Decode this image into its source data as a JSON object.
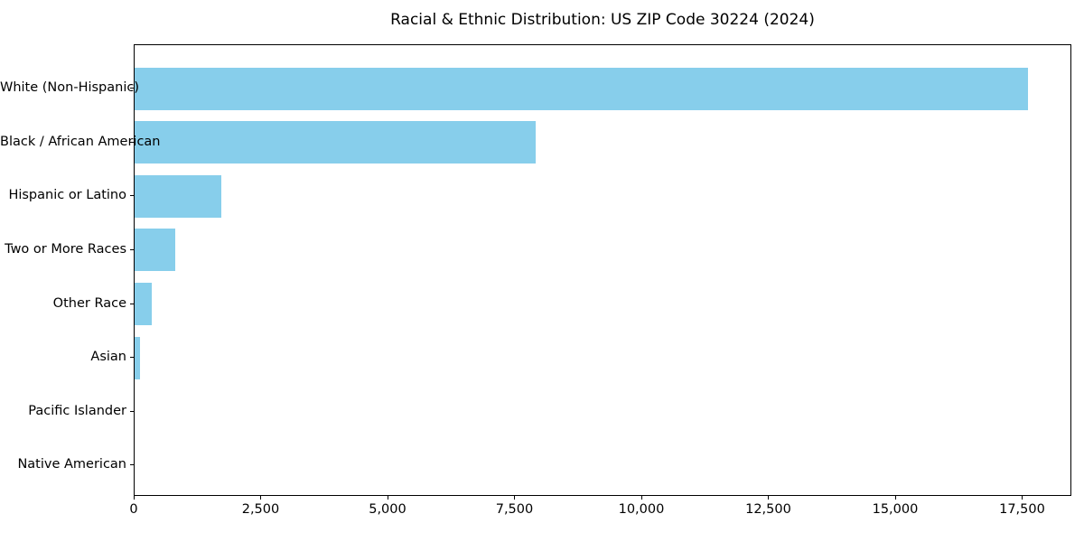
{
  "title": "Racial & Ethnic Distribution: US ZIP Code 30224 (2024)",
  "chart_data": {
    "type": "bar",
    "orientation": "horizontal",
    "title": "Racial & Ethnic Distribution: US ZIP Code 30224 (2024)",
    "xlabel": "",
    "ylabel": "",
    "categories": [
      "White (Non-Hispanic)",
      "Black / African American",
      "Hispanic or Latino",
      "Two or More Races",
      "Other Race",
      "Asian",
      "Pacific Islander",
      "Native American"
    ],
    "values": [
      17590,
      7895,
      1700,
      805,
      330,
      105,
      0,
      0
    ],
    "xlim": [
      0,
      18470
    ],
    "x_ticks": [
      0,
      2500,
      5000,
      7500,
      10000,
      12500,
      15000,
      17500
    ],
    "x_tick_labels": [
      "0",
      "2,500",
      "5,000",
      "7,500",
      "10,000",
      "12,500",
      "15,000",
      "17,500"
    ],
    "bar_color": "#87CEEB",
    "axis_color": "#000000",
    "grid": false,
    "legend": false
  }
}
